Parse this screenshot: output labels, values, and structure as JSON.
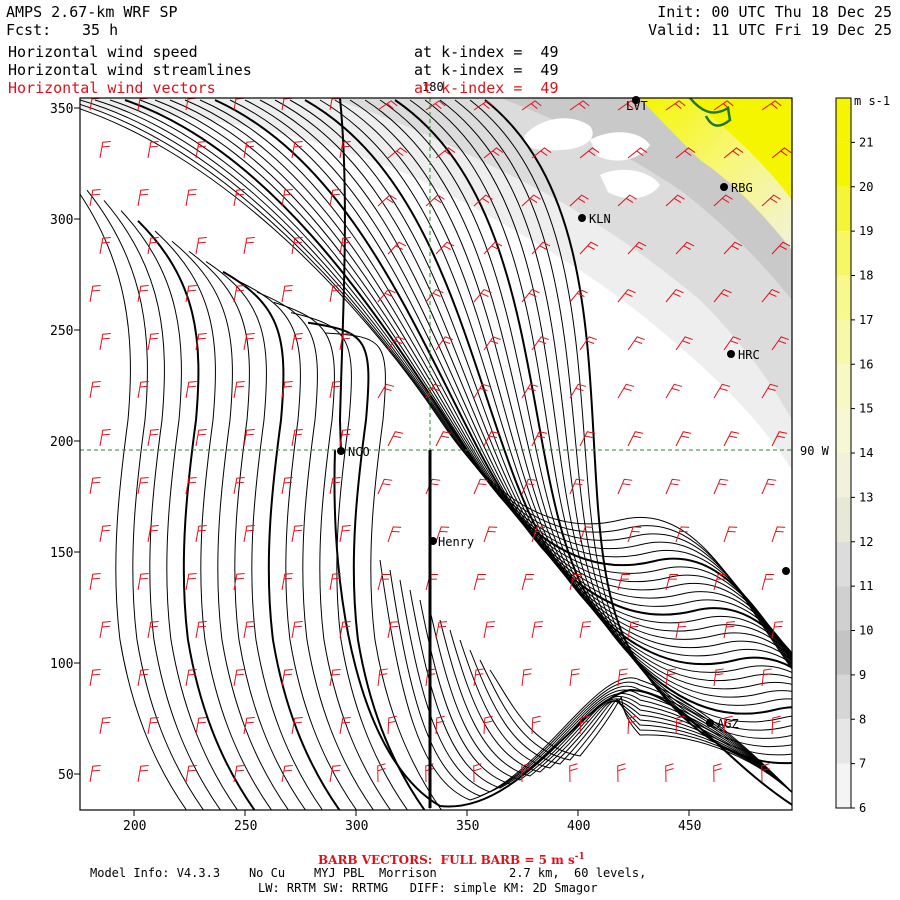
{
  "header": {
    "model_title": "AMPS 2.67-km WRF SP",
    "forecast_label": "Fcst:",
    "forecast_hours": "35 h",
    "init": "Init: 00 UTC Thu 18 Dec 25",
    "valid": "Valid: 11 UTC Fri 19 Dec 25"
  },
  "fields": [
    {
      "name": "Horizontal wind speed",
      "level": "at k-index =  49",
      "color": "#000000"
    },
    {
      "name": "Horizontal wind streamlines",
      "level": "at k-index =  49",
      "color": "#000000"
    },
    {
      "name": "Horizontal wind vectors",
      "level": "at k-index =  49",
      "color": "#e0101a"
    }
  ],
  "map": {
    "x_ticks": [
      "200",
      "250",
      "300",
      "350",
      "400",
      "450"
    ],
    "y_ticks": [
      "350",
      "300",
      "250",
      "200",
      "150",
      "100",
      "50"
    ],
    "grid_labels": {
      "longitude_180": "180",
      "longitude_90w": "90 W"
    },
    "stations": [
      "LVT",
      "RBG",
      "KLN",
      "HRC",
      "NCO",
      "Henry",
      "AGZ"
    ],
    "streamline_color": "#000000",
    "barb_color": "#e0101a",
    "graticule_color": "#2a8a2a"
  },
  "colorbar": {
    "units": "m s-1",
    "levels": [
      "21",
      "20",
      "19",
      "18",
      "17",
      "16",
      "15",
      "14",
      "13",
      "12",
      "11",
      "10",
      "9",
      "8",
      "7",
      "6"
    ],
    "colors": [
      "#f5f500",
      "#f5f500",
      "#f5f538",
      "#f7f766",
      "#f8f88c",
      "#f8f8ab",
      "#f8f8c3",
      "#f7f7d4",
      "#f2f2dc",
      "#e8e8d8",
      "#dcdcdc",
      "#d0d0d0",
      "#c4c4c4",
      "#d6d6d6",
      "#e6e6e6",
      "#f4f4f4"
    ]
  },
  "footer": {
    "barb_note": "BARB VECTORS:  FULL BARB = 5 m s",
    "barb_exp": "-1",
    "model_info": "Model Info: V4.3.3    No Cu    MYJ PBL  Morrison          2.7 km,  60 levels,",
    "physics": "LW: RRTM SW: RRTMG   DIFF: simple KM: 2D Smagor"
  }
}
